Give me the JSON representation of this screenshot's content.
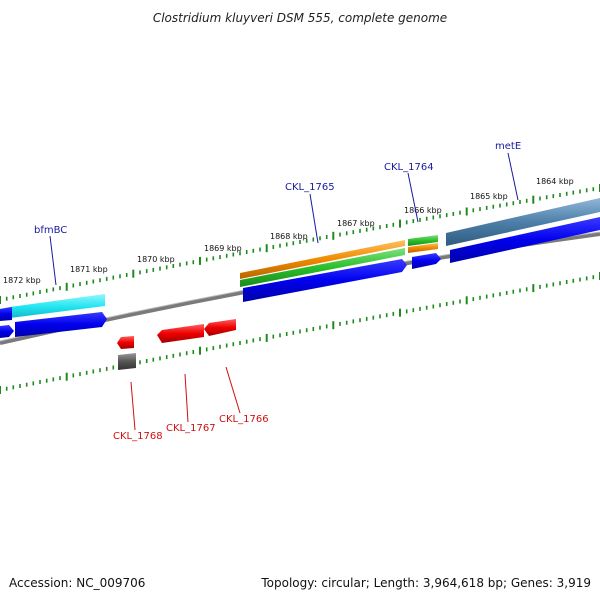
{
  "header": {
    "title": "Clostridium kluyveri DSM 555, complete genome"
  },
  "footer": {
    "accession": "Accession: NC_009706",
    "topology": "Topology: circular; Length: 3,964,618 bp; Genes: 3,919"
  },
  "upper_ticks": [
    "1872 kbp",
    "1871 kbp",
    "1870 kbp",
    "1869 kbp",
    "1868 kbp",
    "1867 kbp",
    "1866 kbp",
    "1865 kbp",
    "1864 kbp"
  ],
  "forward_labels": [
    "bfmBC",
    "CKL_1765",
    "CKL_1764",
    "metE"
  ],
  "reverse_labels": [
    "CKL_1768",
    "CKL_1767",
    "CKL_1766"
  ],
  "colors": {
    "backbone": "#7a7a7a",
    "cds": "#0000ee",
    "gene_cyan": "#22e5f0",
    "gene_orange": "#f08a00",
    "gene_green": "#2bbf2b",
    "gene_steel": "#4d7fa8",
    "rev_red": "#ee0000",
    "rev_gray": "#555555",
    "tick": "#1f8a1f"
  }
}
